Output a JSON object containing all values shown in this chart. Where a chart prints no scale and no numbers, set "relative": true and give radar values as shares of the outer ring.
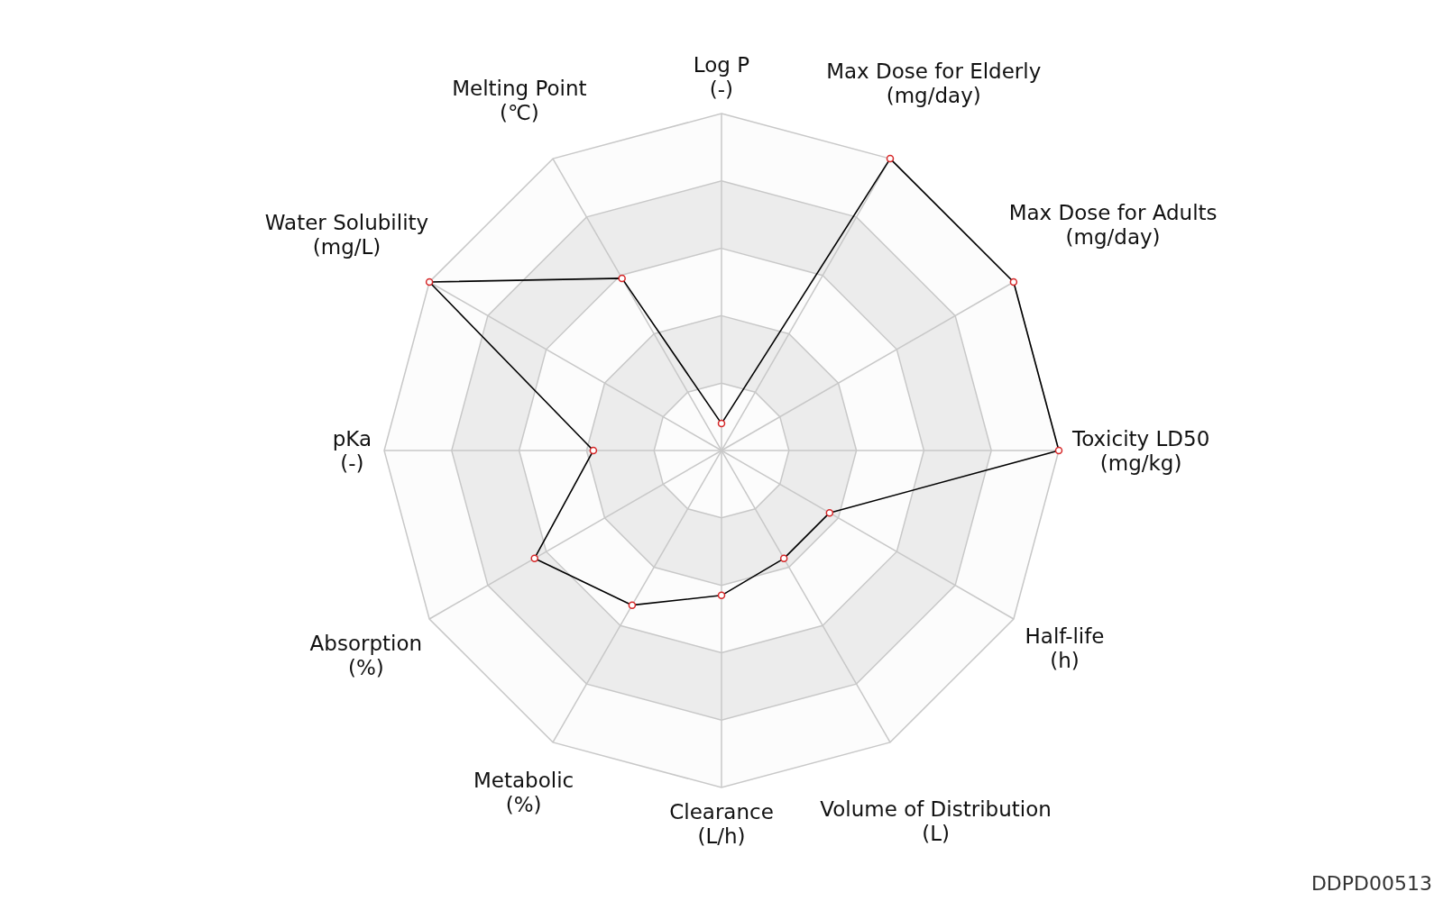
{
  "chart_data": {
    "type": "radar",
    "relative": true,
    "marker": "circle",
    "grid": true,
    "categories": [
      "Log P\n(-)",
      "Max Dose for Elderly\n(mg/day)",
      "Max Dose for Adults\n(mg/day)",
      "Toxicity LD50\n(mg/kg)",
      "Half-life\n(h)",
      "Volume of Distribution\n(L)",
      "Clearance\n(L/h)",
      "Metabolic\n(%)",
      "Absorption\n(%)",
      "pKa\n(-)",
      "Water Solubility\n(mg/L)",
      "Melting Point\n(℃)"
    ],
    "series": [
      {
        "color": "#000000",
        "values": [
          0.08,
          1.0,
          1.0,
          1.0,
          0.37,
          0.37,
          0.43,
          0.53,
          0.64,
          0.38,
          1.0,
          0.59
        ]
      }
    ],
    "annotations": [
      "DDPD00513"
    ]
  }
}
